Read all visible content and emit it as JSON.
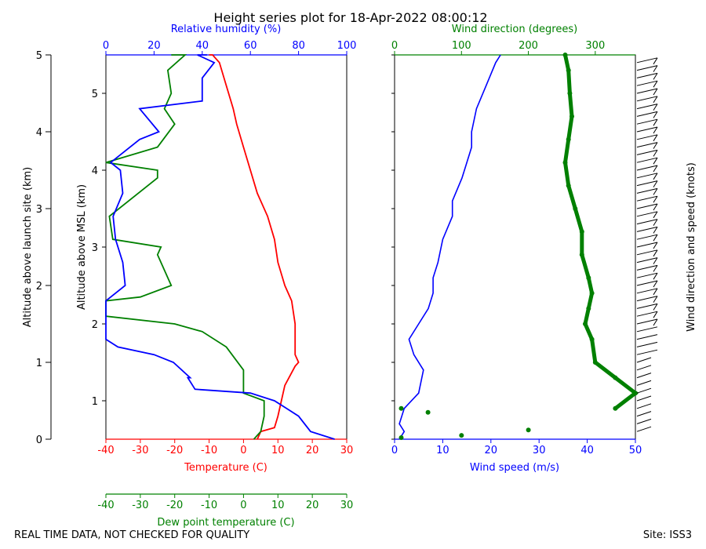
{
  "title": "Height series plot for 18-Apr-2022 08:00:12",
  "footer_left": "REAL TIME DATA, NOT CHECKED FOR QUALITY",
  "footer_right": "Site: ISS3",
  "colors": {
    "temperature": "#ff0000",
    "dewpoint": "#008000",
    "rh": "#0000ff",
    "wind_speed": "#0000ff",
    "wind_dir": "#008000",
    "barbs": "#000000"
  },
  "chart_data": [
    {
      "type": "line",
      "panel": "thermo",
      "title": "Height series plot for 18-Apr-2022 08:00:12",
      "ylabel_outer": "Altitude above launch site (km)",
      "ylabel_inner": "Altitude above MSL (km)",
      "y_launch_range": [
        0,
        5
      ],
      "y_launch_ticks": [
        "0",
        "1",
        "2",
        "3",
        "4",
        "5"
      ],
      "y_msl_range": [
        0.5,
        5.5
      ],
      "y_msl_ticks": [
        "1",
        "2",
        "3",
        "4",
        "5"
      ],
      "x_bottom": {
        "label": "Temperature (C)",
        "range": [
          -40,
          30
        ],
        "ticks": [
          "-40",
          "-30",
          "-20",
          "-10",
          "0",
          "10",
          "20",
          "30"
        ]
      },
      "x_dew": {
        "label": "Dew point temperature (C)",
        "range": [
          -40,
          30
        ],
        "ticks": [
          "-40",
          "-30",
          "-20",
          "-10",
          "0",
          "10",
          "20",
          "30"
        ]
      },
      "x_top": {
        "label": "Relative humidity (%)",
        "range": [
          0,
          100
        ],
        "ticks": [
          "0",
          "20",
          "40",
          "60",
          "80",
          "100"
        ]
      },
      "series": [
        {
          "name": "Temperature",
          "axis": "temperature",
          "points": [
            [
              4,
              0.0
            ],
            [
              5,
              0.1
            ],
            [
              9,
              0.15
            ],
            [
              10,
              0.3
            ],
            [
              11,
              0.5
            ],
            [
              12,
              0.7
            ],
            [
              15,
              0.95
            ],
            [
              16,
              1.0
            ],
            [
              15,
              1.1
            ],
            [
              15,
              1.3
            ],
            [
              15,
              1.5
            ],
            [
              14,
              1.8
            ],
            [
              12,
              2.0
            ],
            [
              10,
              2.3
            ],
            [
              9,
              2.6
            ],
            [
              7,
              2.9
            ],
            [
              4,
              3.2
            ],
            [
              2,
              3.5
            ],
            [
              0,
              3.8
            ],
            [
              -2,
              4.1
            ],
            [
              -3,
              4.3
            ],
            [
              -5,
              4.6
            ],
            [
              -7,
              4.9
            ],
            [
              -9,
              5.2
            ],
            [
              -10,
              5.5
            ]
          ]
        },
        {
          "name": "Dew point",
          "axis": "dewpoint",
          "points": [
            [
              3,
              0.0
            ],
            [
              5,
              0.1
            ],
            [
              6,
              0.3
            ],
            [
              6,
              0.5
            ],
            [
              0,
              0.6
            ],
            [
              0,
              0.9
            ],
            [
              -5,
              1.2
            ],
            [
              -12,
              1.4
            ],
            [
              -20,
              1.5
            ],
            [
              -40,
              1.6
            ],
            [
              -40,
              1.8
            ],
            [
              -30,
              1.85
            ],
            [
              -21,
              2.0
            ],
            [
              -25,
              2.4
            ],
            [
              -24,
              2.5
            ],
            [
              -38,
              2.6
            ],
            [
              -39,
              2.9
            ],
            [
              -25,
              3.4
            ],
            [
              -25,
              3.5
            ],
            [
              -40,
              3.6
            ],
            [
              -25,
              3.8
            ],
            [
              -20,
              4.1
            ],
            [
              -23,
              4.3
            ],
            [
              -21,
              4.5
            ],
            [
              -22,
              4.8
            ],
            [
              -17,
              5.0
            ],
            [
              -21,
              5.3
            ],
            [
              -21,
              5.5
            ]
          ]
        },
        {
          "name": "Relative humidity",
          "axis": "rh",
          "points": [
            [
              95,
              0.0
            ],
            [
              85,
              0.1
            ],
            [
              80,
              0.3
            ],
            [
              75,
              0.4
            ],
            [
              70,
              0.5
            ],
            [
              60,
              0.6
            ],
            [
              37,
              0.65
            ],
            [
              34,
              0.8
            ],
            [
              35,
              0.8
            ],
            [
              28,
              1.0
            ],
            [
              20,
              1.1
            ],
            [
              5,
              1.2
            ],
            [
              0,
              1.3
            ],
            [
              0,
              1.8
            ],
            [
              8,
              2.0
            ],
            [
              7,
              2.3
            ],
            [
              4,
              2.6
            ],
            [
              3,
              2.9
            ],
            [
              7,
              3.2
            ],
            [
              6,
              3.5
            ],
            [
              2,
              3.6
            ],
            [
              14,
              3.9
            ],
            [
              22,
              4.0
            ],
            [
              14,
              4.3
            ],
            [
              40,
              4.4
            ],
            [
              40,
              4.7
            ],
            [
              45,
              4.9
            ],
            [
              38,
              5.2
            ],
            [
              42,
              5.5
            ]
          ]
        }
      ]
    },
    {
      "type": "line",
      "panel": "wind",
      "x_bottom": {
        "label": "Wind speed (m/s)",
        "range": [
          0,
          50
        ],
        "ticks": [
          "0",
          "10",
          "20",
          "30",
          "40",
          "50"
        ]
      },
      "x_top": {
        "label": "Wind direction (degrees)",
        "range": [
          0,
          360
        ],
        "ticks": [
          "0",
          "100",
          "200",
          "300"
        ]
      },
      "y_launch_range": [
        0,
        5
      ],
      "series": [
        {
          "name": "Wind speed",
          "axis": "wind_speed",
          "points": [
            [
              1,
              0.0
            ],
            [
              2,
              0.1
            ],
            [
              1,
              0.2
            ],
            [
              2,
              0.4
            ],
            [
              5,
              0.6
            ],
            [
              6,
              0.9
            ],
            [
              4,
              1.1
            ],
            [
              3,
              1.3
            ],
            [
              5,
              1.5
            ],
            [
              7,
              1.7
            ],
            [
              8,
              1.9
            ],
            [
              8,
              2.1
            ],
            [
              9,
              2.3
            ],
            [
              10,
              2.6
            ],
            [
              12,
              2.9
            ],
            [
              12,
              3.1
            ],
            [
              14,
              3.4
            ],
            [
              15,
              3.6
            ],
            [
              16,
              3.8
            ],
            [
              16,
              4.0
            ],
            [
              17,
              4.3
            ],
            [
              19,
              4.6
            ],
            [
              21,
              4.9
            ],
            [
              22,
              5.0
            ]
          ]
        },
        {
          "name": "Wind direction",
          "axis": "wind_dir",
          "points": [
            [
              10,
              0.02
            ],
            [
              100,
              0.05
            ],
            [
              200,
              0.12
            ],
            [
              50,
              0.35
            ],
            [
              10,
              0.4
            ],
            [
              330,
              0.4
            ],
            [
              360,
              0.6
            ],
            [
              330,
              0.8
            ],
            [
              300,
              1.0
            ],
            [
              295,
              1.3
            ],
            [
              285,
              1.5
            ],
            [
              290,
              1.7
            ],
            [
              295,
              1.9
            ],
            [
              290,
              2.1
            ],
            [
              280,
              2.4
            ],
            [
              280,
              2.7
            ],
            [
              270,
              3.0
            ],
            [
              260,
              3.3
            ],
            [
              255,
              3.6
            ],
            [
              260,
              3.9
            ],
            [
              265,
              4.2
            ],
            [
              262,
              4.5
            ],
            [
              260,
              4.8
            ],
            [
              255,
              5.0
            ]
          ]
        }
      ],
      "barbs_label": "Wind direction and speed (knots)"
    }
  ]
}
